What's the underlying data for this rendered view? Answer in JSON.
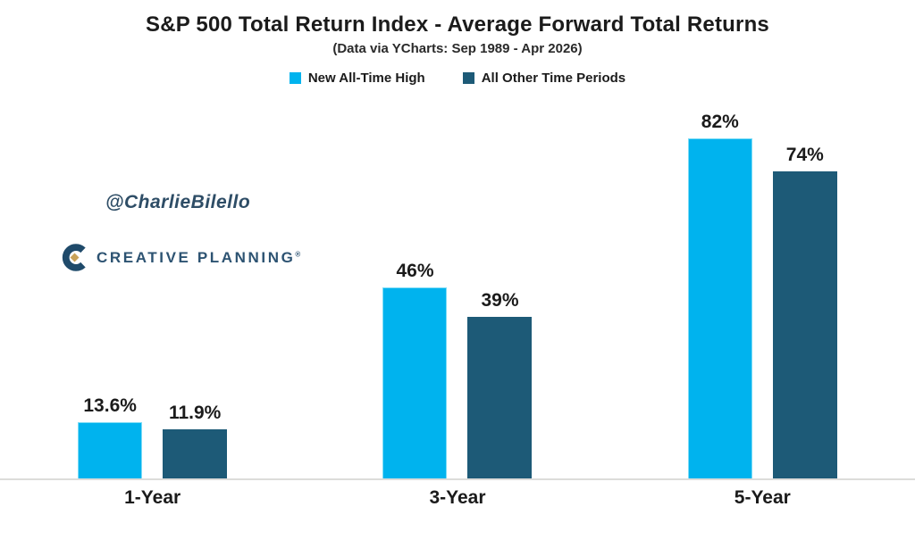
{
  "header": {
    "title": "S&P 500 Total Return Index - Average Forward Total Returns",
    "subtitle": "(Data via YCharts: Sep 1989 - Apr 2026)"
  },
  "watermark": {
    "handle": "@CharlieBilello",
    "brand": "CREATIVE PLANNING",
    "brand_mark": "®",
    "brand_color": "#2d5372",
    "logo_navy": "#1f4a6a",
    "logo_gold": "#c9a258"
  },
  "chart_data": {
    "type": "bar",
    "title": "S&P 500 Total Return Index - Average Forward Total Returns",
    "subtitle": "(Data via YCharts: Sep 1989 - Apr 2026)",
    "categories": [
      "1-Year",
      "3-Year",
      "5-Year"
    ],
    "series": [
      {
        "name": "New All-Time High",
        "color": "#00b3ee",
        "values": [
          13.6,
          46,
          82
        ],
        "labels": [
          "13.6%",
          "46%",
          "82%"
        ]
      },
      {
        "name": "All Other Time Periods",
        "color": "#1d5a77",
        "values": [
          11.9,
          39,
          74
        ],
        "labels": [
          "11.9%",
          "39%",
          "74%"
        ]
      }
    ],
    "xlabel": "",
    "ylabel": "",
    "ylim": [
      0,
      88
    ],
    "axis_visible": false,
    "grid": false,
    "legend_position": "top",
    "value_label_format": "percent",
    "baseline_color": "#dcdcda"
  }
}
